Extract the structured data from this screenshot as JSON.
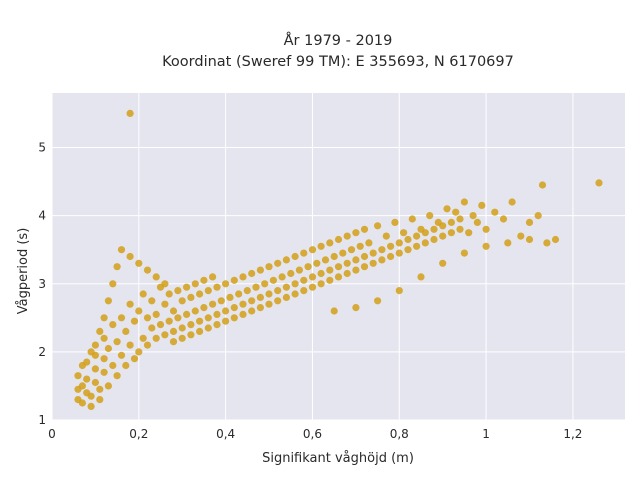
{
  "chart_data": {
    "type": "scatter",
    "title_line1": "År 1979 - 2019",
    "title_line2": "Koordinat (Sweref 99 TM): E 355693, N 6170697",
    "xlabel": "Signifikant våghöjd (m)",
    "ylabel": "Vågperiod (s)",
    "xlim": [
      0,
      1.32
    ],
    "ylim": [
      1,
      5.8
    ],
    "x_ticks": [
      0,
      0.2,
      0.4,
      0.6,
      0.8,
      1,
      1.2
    ],
    "x_tick_labels": [
      "0",
      "0,2",
      "0,4",
      "0,6",
      "0,8",
      "1",
      "1,2"
    ],
    "y_ticks": [
      1,
      2,
      3,
      4,
      5
    ],
    "y_tick_labels": [
      "1",
      "2",
      "3",
      "4",
      "5"
    ],
    "grid": true,
    "legend": "none",
    "colors": {
      "marker": "#D4A017",
      "plot_background": "#E5E5EF",
      "grid": "#ffffff"
    },
    "series": [
      {
        "points": [
          [
            0.06,
            1.3
          ],
          [
            0.06,
            1.45
          ],
          [
            0.07,
            1.25
          ],
          [
            0.07,
            1.5
          ],
          [
            0.08,
            1.4
          ],
          [
            0.08,
            1.6
          ],
          [
            0.09,
            1.2
          ],
          [
            0.09,
            1.35
          ],
          [
            0.1,
            1.55
          ],
          [
            0.1,
            1.75
          ],
          [
            0.1,
            1.95
          ],
          [
            0.11,
            1.45
          ],
          [
            0.11,
            1.3
          ],
          [
            0.12,
            1.7
          ],
          [
            0.12,
            1.9
          ],
          [
            0.12,
            2.2
          ],
          [
            0.13,
            1.5
          ],
          [
            0.13,
            2.05
          ],
          [
            0.14,
            1.8
          ],
          [
            0.14,
            2.4
          ],
          [
            0.15,
            1.65
          ],
          [
            0.15,
            2.15
          ],
          [
            0.16,
            1.95
          ],
          [
            0.16,
            2.5
          ],
          [
            0.17,
            1.8
          ],
          [
            0.17,
            2.3
          ],
          [
            0.18,
            2.1
          ],
          [
            0.18,
            2.7
          ],
          [
            0.19,
            1.9
          ],
          [
            0.19,
            2.45
          ],
          [
            0.2,
            2.0
          ],
          [
            0.2,
            2.6
          ],
          [
            0.21,
            2.2
          ],
          [
            0.21,
            2.85
          ],
          [
            0.22,
            2.1
          ],
          [
            0.22,
            2.5
          ],
          [
            0.23,
            2.35
          ],
          [
            0.23,
            2.75
          ],
          [
            0.24,
            2.2
          ],
          [
            0.24,
            2.55
          ],
          [
            0.25,
            2.4
          ],
          [
            0.25,
            2.95
          ],
          [
            0.26,
            2.25
          ],
          [
            0.26,
            2.7
          ],
          [
            0.27,
            2.45
          ],
          [
            0.27,
            2.85
          ],
          [
            0.28,
            2.3
          ],
          [
            0.28,
            2.6
          ],
          [
            0.29,
            2.5
          ],
          [
            0.29,
            2.9
          ],
          [
            0.3,
            2.35
          ],
          [
            0.3,
            2.75
          ],
          [
            0.31,
            2.55
          ],
          [
            0.31,
            2.95
          ],
          [
            0.32,
            2.4
          ],
          [
            0.32,
            2.8
          ],
          [
            0.33,
            2.6
          ],
          [
            0.33,
            3.0
          ],
          [
            0.34,
            2.45
          ],
          [
            0.34,
            2.85
          ],
          [
            0.35,
            2.65
          ],
          [
            0.35,
            3.05
          ],
          [
            0.36,
            2.5
          ],
          [
            0.36,
            2.9
          ],
          [
            0.37,
            2.7
          ],
          [
            0.37,
            3.1
          ],
          [
            0.38,
            2.55
          ],
          [
            0.38,
            2.95
          ],
          [
            0.39,
            2.75
          ],
          [
            0.4,
            2.6
          ],
          [
            0.4,
            3.0
          ],
          [
            0.41,
            2.8
          ],
          [
            0.42,
            2.65
          ],
          [
            0.42,
            3.05
          ],
          [
            0.43,
            2.85
          ],
          [
            0.44,
            2.7
          ],
          [
            0.44,
            3.1
          ],
          [
            0.45,
            2.9
          ],
          [
            0.46,
            2.75
          ],
          [
            0.46,
            3.15
          ],
          [
            0.47,
            2.95
          ],
          [
            0.48,
            2.8
          ],
          [
            0.48,
            3.2
          ],
          [
            0.49,
            3.0
          ],
          [
            0.5,
            2.85
          ],
          [
            0.5,
            3.25
          ],
          [
            0.51,
            3.05
          ],
          [
            0.52,
            2.9
          ],
          [
            0.52,
            3.3
          ],
          [
            0.53,
            3.1
          ],
          [
            0.54,
            2.95
          ],
          [
            0.54,
            3.35
          ],
          [
            0.55,
            3.15
          ],
          [
            0.56,
            3.0
          ],
          [
            0.56,
            3.4
          ],
          [
            0.57,
            3.2
          ],
          [
            0.58,
            3.05
          ],
          [
            0.58,
            3.45
          ],
          [
            0.59,
            3.25
          ],
          [
            0.6,
            3.1
          ],
          [
            0.6,
            3.5
          ],
          [
            0.61,
            3.3
          ],
          [
            0.62,
            3.15
          ],
          [
            0.62,
            3.55
          ],
          [
            0.63,
            3.35
          ],
          [
            0.64,
            3.2
          ],
          [
            0.64,
            3.6
          ],
          [
            0.65,
            3.4
          ],
          [
            0.66,
            3.25
          ],
          [
            0.66,
            3.65
          ],
          [
            0.67,
            3.45
          ],
          [
            0.68,
            3.3
          ],
          [
            0.68,
            3.7
          ],
          [
            0.69,
            3.5
          ],
          [
            0.7,
            3.35
          ],
          [
            0.7,
            3.75
          ],
          [
            0.71,
            3.55
          ],
          [
            0.72,
            3.4
          ],
          [
            0.72,
            3.8
          ],
          [
            0.73,
            3.6
          ],
          [
            0.74,
            3.45
          ],
          [
            0.75,
            3.85
          ],
          [
            0.76,
            3.5
          ],
          [
            0.77,
            3.7
          ],
          [
            0.78,
            3.55
          ],
          [
            0.79,
            3.9
          ],
          [
            0.8,
            3.6
          ],
          [
            0.81,
            3.75
          ],
          [
            0.82,
            3.65
          ],
          [
            0.83,
            3.95
          ],
          [
            0.84,
            3.7
          ],
          [
            0.85,
            3.8
          ],
          [
            0.86,
            3.75
          ],
          [
            0.87,
            4.0
          ],
          [
            0.88,
            3.8
          ],
          [
            0.89,
            3.9
          ],
          [
            0.9,
            3.85
          ],
          [
            0.91,
            4.1
          ],
          [
            0.92,
            3.9
          ],
          [
            0.93,
            4.05
          ],
          [
            0.94,
            3.95
          ],
          [
            0.95,
            4.2
          ],
          [
            0.96,
            3.75
          ],
          [
            0.97,
            4.0
          ],
          [
            0.98,
            3.9
          ],
          [
            0.99,
            4.15
          ],
          [
            1.0,
            3.8
          ],
          [
            1.02,
            4.05
          ],
          [
            1.04,
            3.95
          ],
          [
            1.06,
            4.2
          ],
          [
            1.08,
            3.7
          ],
          [
            1.1,
            3.9
          ],
          [
            1.12,
            4.0
          ],
          [
            1.14,
            3.6
          ],
          [
            1.16,
            3.65
          ],
          [
            1.13,
            4.45
          ],
          [
            1.26,
            4.48
          ],
          [
            0.18,
            5.5
          ],
          [
            0.06,
            1.65
          ],
          [
            0.07,
            1.8
          ],
          [
            0.08,
            1.85
          ],
          [
            0.09,
            2.0
          ],
          [
            0.1,
            2.1
          ],
          [
            0.11,
            2.3
          ],
          [
            0.12,
            2.5
          ],
          [
            0.13,
            2.75
          ],
          [
            0.14,
            3.0
          ],
          [
            0.15,
            3.25
          ],
          [
            0.16,
            3.5
          ],
          [
            0.18,
            3.4
          ],
          [
            0.2,
            3.3
          ],
          [
            0.22,
            3.2
          ],
          [
            0.24,
            3.1
          ],
          [
            0.26,
            3.0
          ],
          [
            0.28,
            2.15
          ],
          [
            0.3,
            2.2
          ],
          [
            0.32,
            2.25
          ],
          [
            0.34,
            2.3
          ],
          [
            0.36,
            2.35
          ],
          [
            0.38,
            2.4
          ],
          [
            0.4,
            2.45
          ],
          [
            0.42,
            2.5
          ],
          [
            0.44,
            2.55
          ],
          [
            0.46,
            2.6
          ],
          [
            0.48,
            2.65
          ],
          [
            0.5,
            2.7
          ],
          [
            0.52,
            2.75
          ],
          [
            0.54,
            2.8
          ],
          [
            0.56,
            2.85
          ],
          [
            0.58,
            2.9
          ],
          [
            0.6,
            2.95
          ],
          [
            0.62,
            3.0
          ],
          [
            0.64,
            3.05
          ],
          [
            0.66,
            3.1
          ],
          [
            0.68,
            3.15
          ],
          [
            0.7,
            3.2
          ],
          [
            0.72,
            3.25
          ],
          [
            0.74,
            3.3
          ],
          [
            0.76,
            3.35
          ],
          [
            0.78,
            3.4
          ],
          [
            0.8,
            3.45
          ],
          [
            0.82,
            3.5
          ],
          [
            0.84,
            3.55
          ],
          [
            0.86,
            3.6
          ],
          [
            0.88,
            3.65
          ],
          [
            0.9,
            3.7
          ],
          [
            0.92,
            3.75
          ],
          [
            0.94,
            3.8
          ],
          [
            0.65,
            2.6
          ],
          [
            0.7,
            2.65
          ],
          [
            0.75,
            2.75
          ],
          [
            0.8,
            2.9
          ],
          [
            0.85,
            3.1
          ],
          [
            0.9,
            3.3
          ],
          [
            0.95,
            3.45
          ],
          [
            1.0,
            3.55
          ],
          [
            1.05,
            3.6
          ],
          [
            1.1,
            3.65
          ]
        ]
      }
    ]
  }
}
